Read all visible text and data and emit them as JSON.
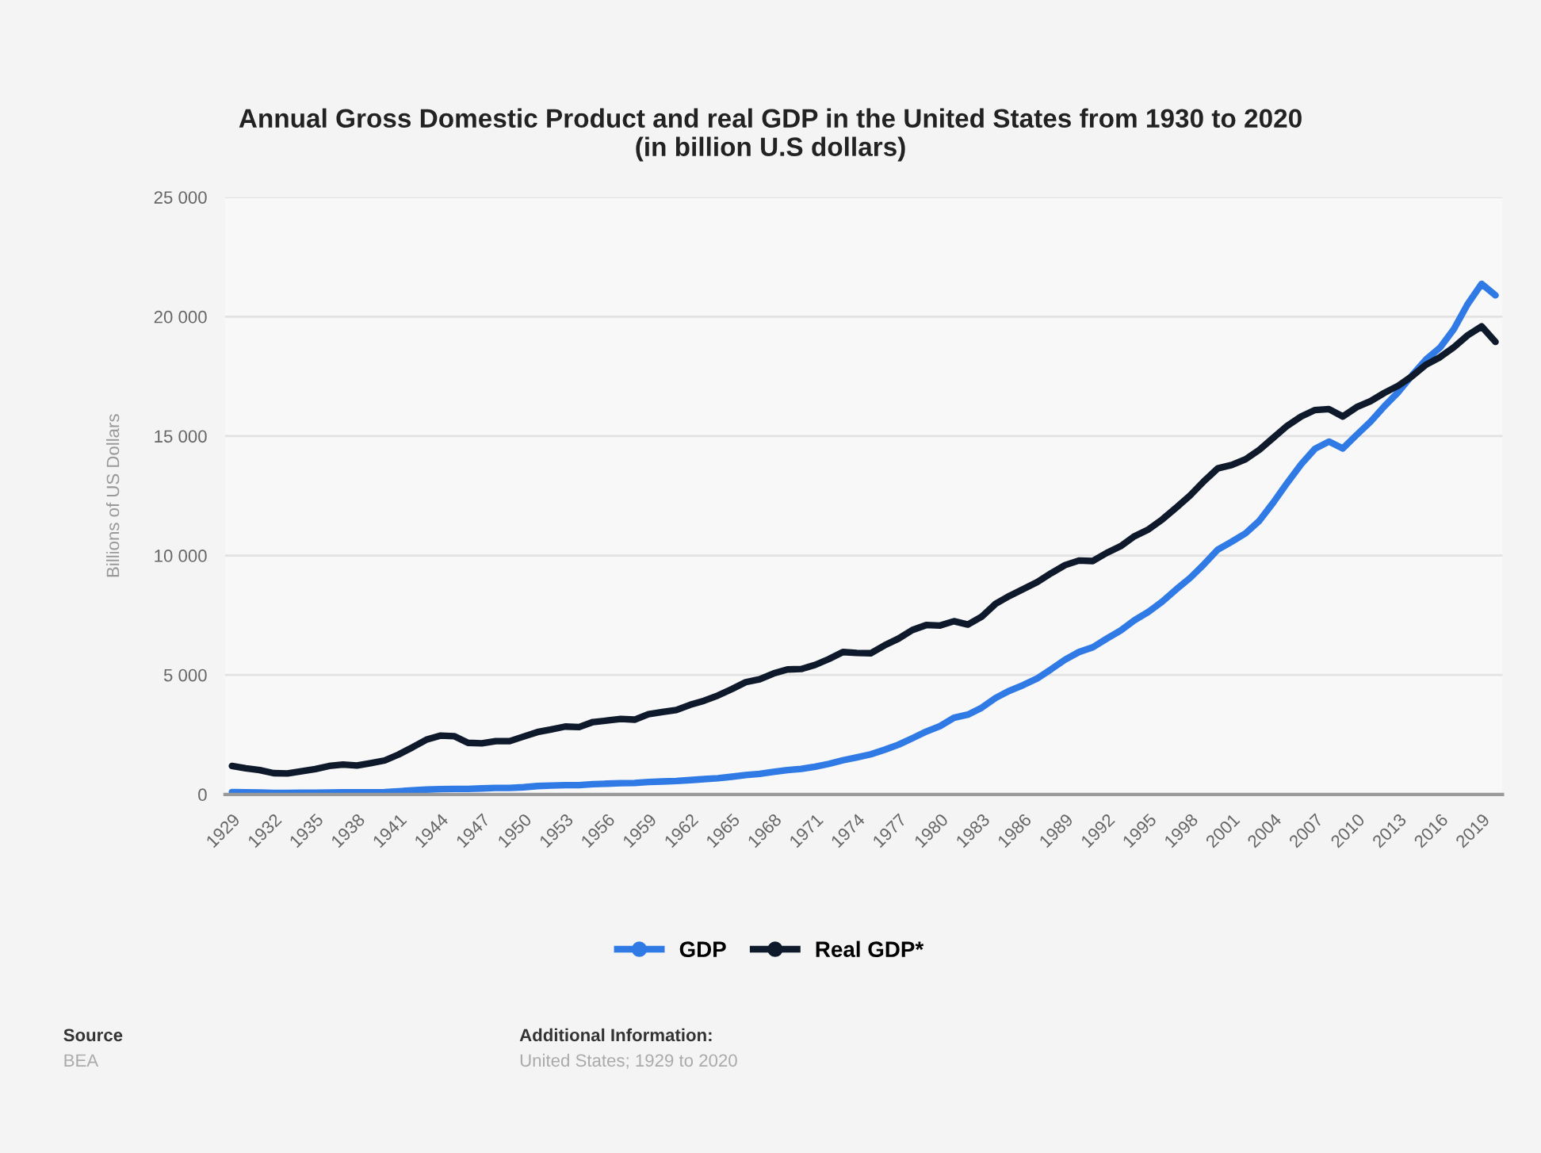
{
  "chart_data": {
    "type": "line",
    "title": "Annual Gross Domestic Product and real GDP in the United States from 1930 to 2020\n(in billion U.S dollars)",
    "ylabel": "Billions of US Dollars",
    "x": [
      1929,
      1930,
      1931,
      1932,
      1933,
      1934,
      1935,
      1936,
      1937,
      1938,
      1939,
      1940,
      1941,
      1942,
      1943,
      1944,
      1945,
      1946,
      1947,
      1948,
      1949,
      1950,
      1951,
      1952,
      1953,
      1954,
      1955,
      1956,
      1957,
      1958,
      1959,
      1960,
      1961,
      1962,
      1963,
      1964,
      1965,
      1966,
      1967,
      1968,
      1969,
      1970,
      1971,
      1972,
      1973,
      1974,
      1975,
      1976,
      1977,
      1978,
      1979,
      1980,
      1981,
      1982,
      1983,
      1984,
      1985,
      1986,
      1987,
      1988,
      1989,
      1990,
      1991,
      1992,
      1993,
      1994,
      1995,
      1996,
      1997,
      1998,
      1999,
      2000,
      2001,
      2002,
      2003,
      2004,
      2005,
      2006,
      2007,
      2008,
      2009,
      2010,
      2011,
      2012,
      2013,
      2014,
      2015,
      2016,
      2017,
      2018,
      2019,
      2020
    ],
    "series": [
      {
        "name": "GDP",
        "color": "#2f7ae5",
        "values": [
          100,
          90,
          80,
          60,
          60,
          70,
          70,
          80,
          90,
          90,
          90,
          100,
          130,
          170,
          200,
          220,
          230,
          230,
          250,
          270,
          270,
          300,
          350,
          370,
          390,
          390,
          430,
          450,
          470,
          480,
          520,
          540,
          560,
          600,
          640,
          680,
          740,
          810,
          860,
          940,
          1020,
          1070,
          1160,
          1280,
          1430,
          1550,
          1680,
          1870,
          2080,
          2350,
          2630,
          2860,
          3210,
          3340,
          3630,
          4040,
          4340,
          4580,
          4860,
          5240,
          5640,
          5960,
          6160,
          6520,
          6860,
          7290,
          7640,
          8070,
          8580,
          9060,
          9630,
          10250,
          10580,
          10930,
          11460,
          12220,
          13040,
          13820,
          14470,
          14770,
          14480,
          15050,
          15600,
          16250,
          16840,
          17550,
          18210,
          18700,
          19480,
          20530,
          21370,
          20890
        ]
      },
      {
        "name": "Real GDP*",
        "color": "#0e1a2b",
        "values": [
          1190,
          1090,
          1020,
          890,
          880,
          970,
          1060,
          1190,
          1250,
          1210,
          1310,
          1420,
          1670,
          1970,
          2290,
          2460,
          2440,
          2160,
          2140,
          2230,
          2230,
          2420,
          2610,
          2720,
          2840,
          2820,
          3030,
          3090,
          3160,
          3130,
          3360,
          3450,
          3530,
          3750,
          3920,
          4140,
          4410,
          4700,
          4820,
          5060,
          5230,
          5250,
          5420,
          5670,
          5960,
          5920,
          5910,
          6240,
          6520,
          6880,
          7090,
          7070,
          7250,
          7110,
          7440,
          7980,
          8310,
          8600,
          8890,
          9260,
          9600,
          9790,
          9770,
          10110,
          10390,
          10810,
          11090,
          11510,
          12000,
          12510,
          13110,
          13650,
          13790,
          14030,
          14430,
          14930,
          15430,
          15820,
          16090,
          16130,
          15820,
          16210,
          16460,
          16810,
          17110,
          17510,
          17990,
          18300,
          18720,
          19220,
          19590,
          18940
        ]
      }
    ],
    "xlim": [
      1928.5,
      2020.5
    ],
    "xticks": [
      1929,
      1932,
      1935,
      1938,
      1941,
      1944,
      1947,
      1950,
      1953,
      1956,
      1959,
      1962,
      1965,
      1968,
      1971,
      1974,
      1977,
      1980,
      1983,
      1986,
      1989,
      1992,
      1995,
      1998,
      2001,
      2004,
      2007,
      2010,
      2013,
      2016,
      2019
    ],
    "ylim": [
      0,
      25000
    ],
    "yticks": [
      0,
      {
        "value": 5000,
        "label": "5 000"
      },
      {
        "value": 10000,
        "label": "10 000"
      },
      {
        "value": 15000,
        "label": "15 000"
      },
      {
        "value": 20000,
        "label": "20 000"
      },
      {
        "value": 25000,
        "label": "25 000"
      }
    ],
    "grid": "y",
    "legend": "bottom",
    "marker": "none",
    "line_style": "solid",
    "annotations": [
      "Source",
      "BEA",
      "Additional Information:",
      "United States; 1929 to 2020"
    ]
  }
}
